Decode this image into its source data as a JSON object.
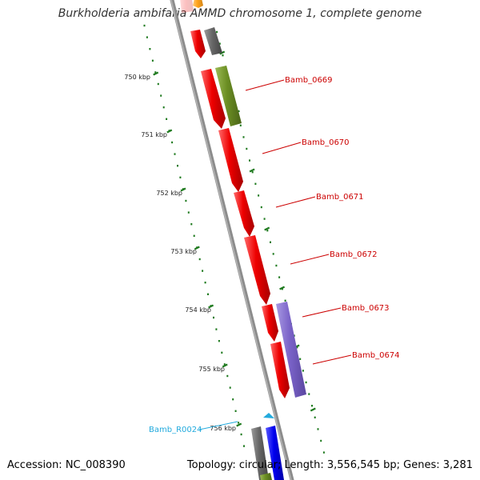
{
  "title": "Burkholderia ambifaria AMMD chromosome 1, complete genome",
  "footer": {
    "accession": "Accession: NC_008390",
    "summary": "Topology: circular; Length: 3,556,545 bp; Genes: 3,281"
  },
  "colors": {
    "backbone": "#8c8c8c",
    "ruler": "#1f7a1f",
    "gene_red": "#ee0000",
    "gene_olive": "#6b8e23",
    "gene_grey": "#666666",
    "gene_purple": "#7a63c8",
    "gene_blue": "#0000ee",
    "gene_orange": "#ff9900",
    "rna": "#22aadd",
    "label_red": "#cc0000",
    "label_rna": "#22aadd"
  },
  "ruler": {
    "unit": "kbp",
    "ticks": [
      "750 kbp",
      "751 kbp",
      "752 kbp",
      "753 kbp",
      "754 kbp",
      "755 kbp",
      "756 kbp"
    ]
  },
  "genes": [
    {
      "name": "Bamb_0669",
      "color": "gene_olive"
    },
    {
      "name": "Bamb_0670",
      "color": "gene_red"
    },
    {
      "name": "Bamb_0671",
      "color": "gene_red"
    },
    {
      "name": "Bamb_0672",
      "color": "gene_red"
    },
    {
      "name": "Bamb_0673",
      "color": "gene_red"
    },
    {
      "name": "Bamb_0674",
      "color": "gene_purple"
    },
    {
      "name": "Bamb_R0024",
      "color": "rna"
    }
  ]
}
